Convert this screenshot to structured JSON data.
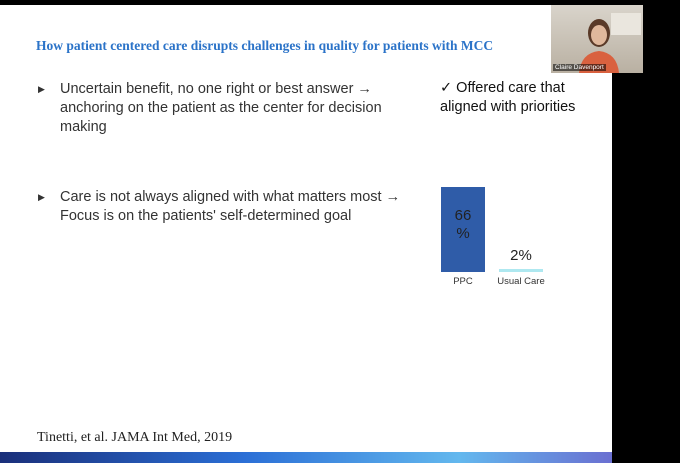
{
  "slide": {
    "title": "How patient centered care disrupts challenges in quality for patients with MCC",
    "bullets": [
      "Uncertain benefit, no one right or best answer → anchoring on the patient as the center for decision making",
      "Care is not always aligned with what matters most → Focus is on the patients' self-determined goal"
    ],
    "check_note": "✓ Offered care that aligned with priorities",
    "chart": {
      "type": "bar",
      "categories": [
        "PPC",
        "Usual Care"
      ],
      "values": [
        66,
        2
      ],
      "value_labels": [
        "66 %",
        "2%"
      ],
      "colors": [
        "#2f5ca8",
        "#aee8f0"
      ]
    },
    "citation": "Tinetti, et al. JAMA Int Med, 2019"
  },
  "video": {
    "participant_name": "Claire Davenport"
  }
}
